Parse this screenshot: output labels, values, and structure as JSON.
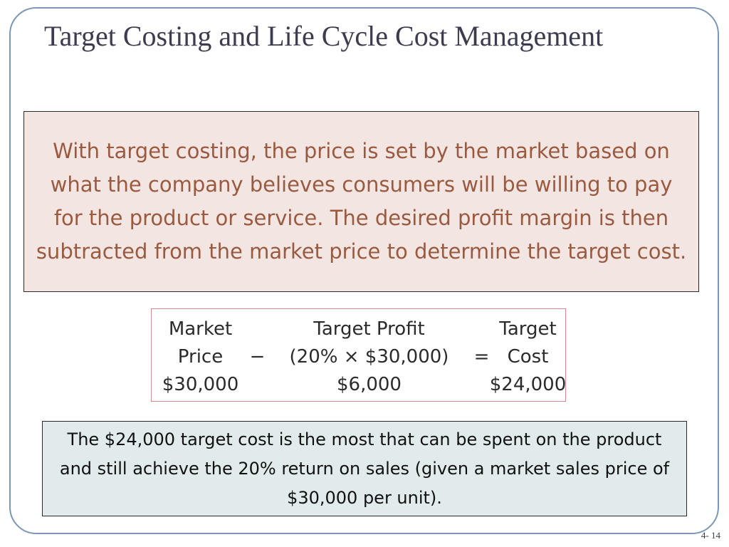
{
  "slide": {
    "title": "Target Costing and Life Cycle Cost Management",
    "top_box_text": "With target costing, the price is set by the market based on what the company believes consumers will be willing to pay for the product or service. The desired profit margin is then subtracted from the market price to determine the target cost.",
    "formula": {
      "market_price_line1": "Market",
      "market_price_line2": "Price",
      "market_price_value": "$30,000",
      "minus_sign": "−",
      "target_profit_line1": "Target Profit",
      "target_profit_line2": "(20% × $30,000)",
      "target_profit_value": "$6,000",
      "equals_sign": "=",
      "target_cost_line1": "Target",
      "target_cost_line2": "Cost",
      "target_cost_value": "$24,000"
    },
    "bottom_box_text": "The $24,000 target cost is the most that can be spent on the product and still achieve the 20% return on sales (given a market sales price of $30,000 per unit).",
    "page_number": "4- 14"
  },
  "colors": {
    "title": "#3c3c4e",
    "top_box_bg": "#f3e5e2",
    "top_box_text": "#9a5a40",
    "bottom_box_bg": "#e1ebeb",
    "frame_border": "#7d96b4",
    "formula_border": "#d98a8a"
  }
}
